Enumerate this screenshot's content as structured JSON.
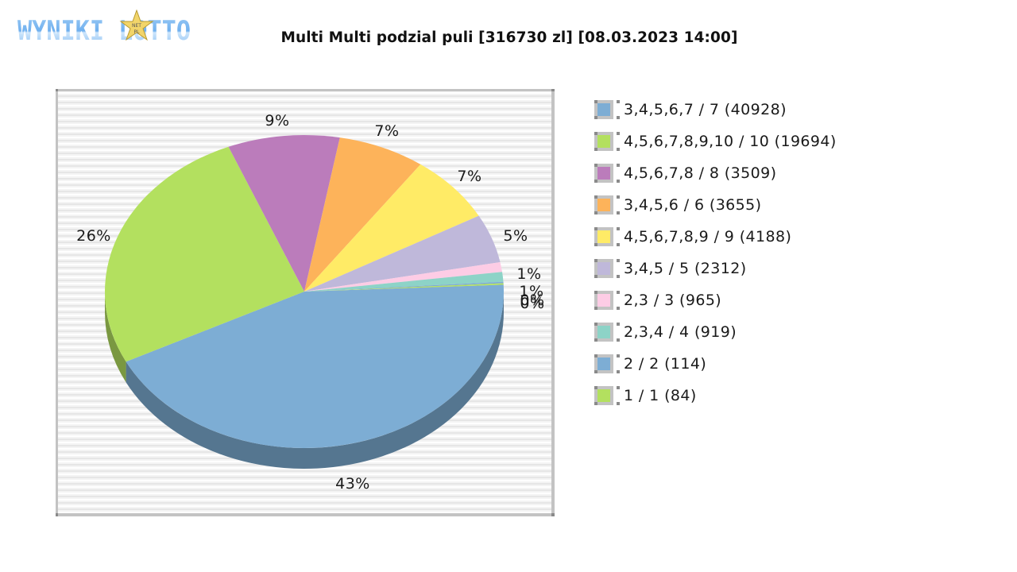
{
  "header": {
    "logo_text": "WYNIKI LOTTO",
    "logo_badge": "NET PL"
  },
  "chart_data": {
    "type": "pie",
    "title": "Multi Multi podzial puli [316730 zl] [08.03.2023 14:00]",
    "style": "3d",
    "legend_position": "right",
    "slices": [
      {
        "label": "3,4,5,6,7 / 7 (40928)",
        "value": 40928,
        "percent": 43,
        "percent_label": "43%",
        "color": "#7dadd4"
      },
      {
        "label": "4,5,6,7,8,9,10 / 10 (19694)",
        "value": 19694,
        "percent": 26,
        "percent_label": "26%",
        "color": "#b3e05f"
      },
      {
        "label": "4,5,6,7,8 / 8 (3509)",
        "value": 3509,
        "percent": 9,
        "percent_label": "9%",
        "color": "#bb7cbb"
      },
      {
        "label": "3,4,5,6 / 6 (3655)",
        "value": 3655,
        "percent": 7,
        "percent_label": "7%",
        "color": "#fdb35a"
      },
      {
        "label": "4,5,6,7,8,9 / 9 (4188)",
        "value": 4188,
        "percent": 7,
        "percent_label": "7%",
        "color": "#ffeb66"
      },
      {
        "label": "3,4,5 / 5 (2312)",
        "value": 2312,
        "percent": 5,
        "percent_label": "5%",
        "color": "#bfb8da"
      },
      {
        "label": "2,3 / 3 (965)",
        "value": 965,
        "percent": 1,
        "percent_label": "1%",
        "color": "#fdcce5"
      },
      {
        "label": "2,3,4 / 4 (919)",
        "value": 919,
        "percent": 1,
        "percent_label": "1%",
        "color": "#8dd3c7"
      },
      {
        "label": "2 / 2 (114)",
        "value": 114,
        "percent": 0,
        "percent_label": "0%",
        "color": "#7dadd4"
      },
      {
        "label": "1 / 1 (84)",
        "value": 84,
        "percent": 0,
        "percent_label": "0%",
        "color": "#b3e05f"
      }
    ]
  }
}
